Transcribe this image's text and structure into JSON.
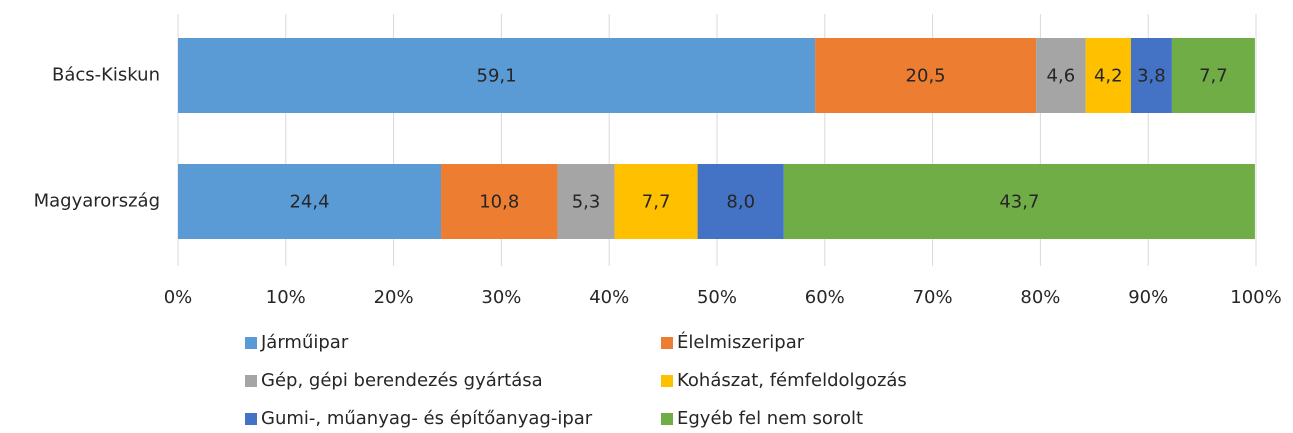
{
  "chart_data": {
    "type": "stacked-bar-horizontal",
    "categories": [
      "Bács-Kiskun",
      "Magyarország"
    ],
    "series": [
      {
        "name": "Járműipar",
        "color": "#5b9bd5",
        "values": [
          59.1,
          24.4
        ],
        "value_labels": [
          "59,1",
          "24,4"
        ]
      },
      {
        "name": "Élelmiszeripar",
        "color": "#ed7d31",
        "values": [
          20.5,
          10.8
        ],
        "value_labels": [
          "20,5",
          "10,8"
        ]
      },
      {
        "name": "Gép, gépi berendezés gyártása",
        "color": "#a5a5a5",
        "values": [
          4.6,
          5.3
        ],
        "value_labels": [
          "4,6",
          "5,3"
        ]
      },
      {
        "name": "Kohászat, fémfeldolgozás",
        "color": "#ffc000",
        "values": [
          4.2,
          7.7
        ],
        "value_labels": [
          "4,2",
          "7,7"
        ]
      },
      {
        "name": "Gumi-, műanyag- és építőanyag-ipar",
        "color": "#4472c4",
        "values": [
          3.8,
          8.0
        ],
        "value_labels": [
          "3,8",
          "8,0"
        ]
      },
      {
        "name": "Egyéb fel nem sorolt",
        "color": "#70ad47",
        "values": [
          7.7,
          43.7
        ],
        "value_labels": [
          "7,7",
          "43,7"
        ]
      }
    ],
    "xlim": [
      0,
      100
    ],
    "xticks": [
      {
        "value": 0,
        "label": "0%"
      },
      {
        "value": 10,
        "label": "10%"
      },
      {
        "value": 20,
        "label": "20%"
      },
      {
        "value": 30,
        "label": "30%"
      },
      {
        "value": 40,
        "label": "40%"
      },
      {
        "value": 50,
        "label": "50%"
      },
      {
        "value": 60,
        "label": "60%"
      },
      {
        "value": 70,
        "label": "70%"
      },
      {
        "value": 80,
        "label": "80%"
      },
      {
        "value": 90,
        "label": "90%"
      },
      {
        "value": 100,
        "label": "100%"
      }
    ],
    "grid": true,
    "legend": "bottom"
  }
}
